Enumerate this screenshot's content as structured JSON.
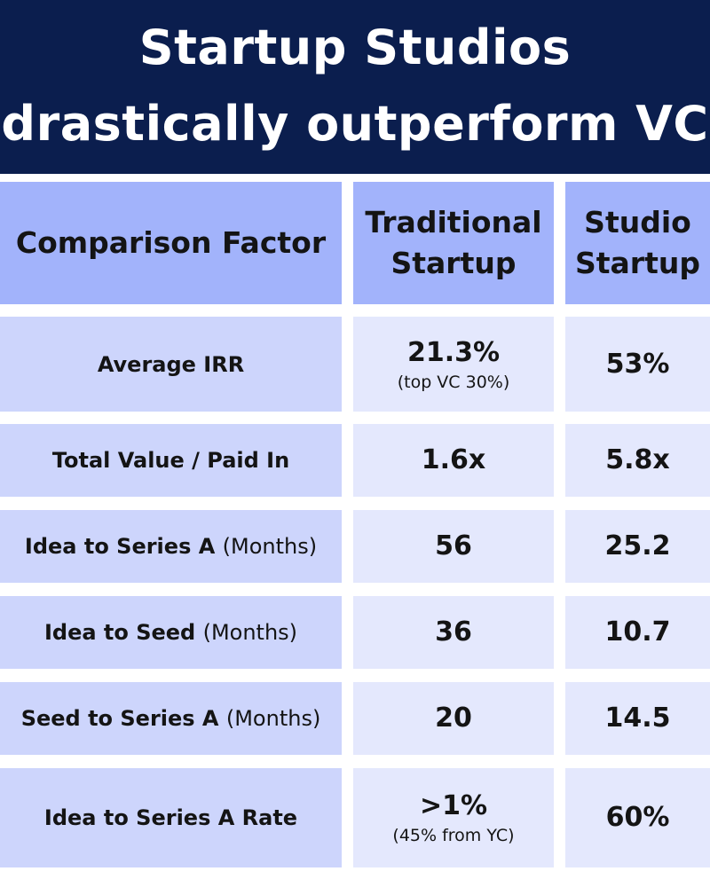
{
  "title": {
    "line1": "Startup Studios",
    "line2": "drastically outperform VC"
  },
  "headers": {
    "factor": "Comparison Factor",
    "traditional_line1": "Traditional",
    "traditional_line2": "Startup",
    "studio_line1": "Studio",
    "studio_line2": "Startup"
  },
  "rows": [
    {
      "factor": "Average IRR",
      "unit": "",
      "traditional": "21.3%",
      "traditional_note": "(top VC 30%)",
      "studio": "53%"
    },
    {
      "factor": "Total Value / Paid In",
      "unit": "",
      "traditional": "1.6x",
      "traditional_note": "",
      "studio": "5.8x"
    },
    {
      "factor": "Idea to Series A",
      "unit": "(Months)",
      "traditional": "56",
      "traditional_note": "",
      "studio": "25.2"
    },
    {
      "factor": "Idea to Seed",
      "unit": "(Months)",
      "traditional": "36",
      "traditional_note": "",
      "studio": "10.7"
    },
    {
      "factor": "Seed to Series A",
      "unit": "(Months)",
      "traditional": "20",
      "traditional_note": "",
      "studio": "14.5"
    },
    {
      "factor": "Idea to Series A Rate",
      "unit": "",
      "traditional": ">1%",
      "traditional_note": "(45% from YC)",
      "studio": "60%"
    }
  ],
  "colors": {
    "title_bg": "#0b1e4e",
    "header_bg": "#a2b3fb",
    "factor_bg": "#cdd5fc",
    "value_bg": "#e4e8fd"
  }
}
